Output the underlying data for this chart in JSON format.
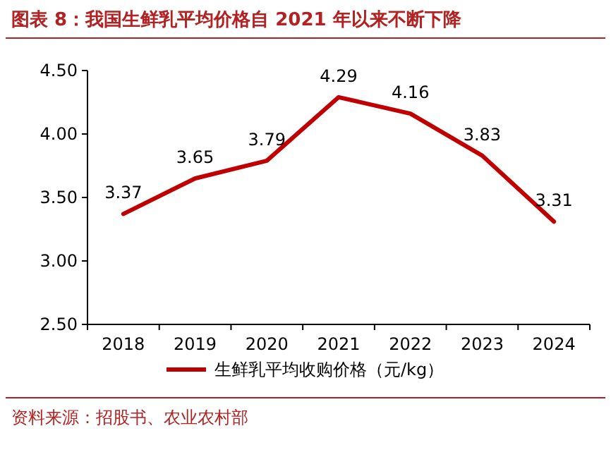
{
  "chart_data": {
    "type": "line",
    "title": "图表 8：我国生鲜乳平均价格自 2021 年以来不断下降",
    "categories": [
      "2018",
      "2019",
      "2020",
      "2021",
      "2022",
      "2023",
      "2024"
    ],
    "series": [
      {
        "name": "生鲜乳平均收购价格（元/kg）",
        "color": "#c00000",
        "values": [
          3.37,
          3.65,
          3.79,
          4.29,
          4.16,
          3.83,
          3.31
        ]
      }
    ],
    "ylim": [
      2.5,
      4.5
    ],
    "yticks": [
      {
        "value": 2.5,
        "label": "2.50"
      },
      {
        "value": 3.0,
        "label": "3.00"
      },
      {
        "value": 3.5,
        "label": "3.50"
      },
      {
        "value": 4.0,
        "label": "4.00"
      },
      {
        "value": 4.5,
        "label": "4.50"
      }
    ],
    "data_labels": true,
    "legend": "bottom",
    "annotations": [
      "资料来源：招股书、农业农村部"
    ]
  }
}
